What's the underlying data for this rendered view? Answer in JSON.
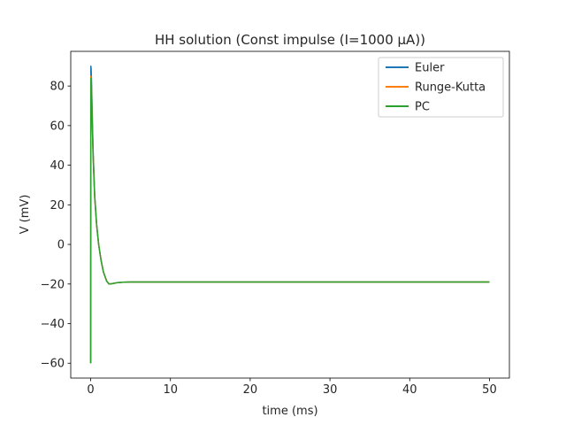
{
  "chart_data": {
    "type": "line",
    "title": "HH solution (Const impulse (I=1000 µA))",
    "xlabel": "time (ms)",
    "ylabel": "V (mV)",
    "xlim": [
      -2.5,
      52.5
    ],
    "ylim": [
      -67.5,
      97.5
    ],
    "xticks": [
      0,
      10,
      20,
      30,
      40,
      50
    ],
    "yticks": [
      -60,
      -40,
      -20,
      0,
      20,
      40,
      60,
      80
    ],
    "xtick_labels": [
      "0",
      "10",
      "20",
      "30",
      "40",
      "50"
    ],
    "ytick_labels": [
      "−60",
      "−40",
      "−20",
      "0",
      "20",
      "40",
      "60",
      "80"
    ],
    "grid": false,
    "legend_position": "top-right",
    "series": [
      {
        "name": "Euler",
        "color": "#1f77b4",
        "x": [
          0,
          0.02,
          0.05,
          0.08,
          0.12,
          0.18,
          0.3,
          0.5,
          0.75,
          1.0,
          1.3,
          1.6,
          2.0,
          2.3,
          2.7,
          3.2,
          4.0,
          5.0,
          7.0,
          10.0,
          20.0,
          30.0,
          40.0,
          50.0
        ],
        "y": [
          -60.0,
          90.0,
          89.0,
          86.0,
          80.0,
          68.0,
          48.0,
          25.0,
          10.0,
          0.0,
          -8.0,
          -14.0,
          -18.5,
          -20.0,
          -19.8,
          -19.4,
          -19.1,
          -19.0,
          -19.0,
          -19.0,
          -19.0,
          -19.0,
          -19.0,
          -19.0
        ]
      },
      {
        "name": "Runge-Kutta",
        "color": "#ff7f0e",
        "x": [
          0,
          0.02,
          0.05,
          0.08,
          0.12,
          0.18,
          0.3,
          0.5,
          0.75,
          1.0,
          1.3,
          1.6,
          2.0,
          2.3,
          2.7,
          3.2,
          4.0,
          5.0,
          7.0,
          10.0,
          20.0,
          30.0,
          40.0,
          50.0
        ],
        "y": [
          -60.0,
          85.0,
          84.0,
          81.0,
          76.0,
          65.0,
          46.0,
          24.0,
          9.5,
          0.0,
          -8.0,
          -14.0,
          -18.5,
          -20.0,
          -19.8,
          -19.4,
          -19.1,
          -19.0,
          -19.0,
          -19.0,
          -19.0,
          -19.0,
          -19.0,
          -19.0
        ]
      },
      {
        "name": "PC",
        "color": "#2ca02c",
        "x": [
          0,
          0.02,
          0.05,
          0.08,
          0.12,
          0.18,
          0.3,
          0.5,
          0.75,
          1.0,
          1.3,
          1.6,
          2.0,
          2.3,
          2.7,
          3.2,
          4.0,
          5.0,
          7.0,
          10.0,
          20.0,
          30.0,
          40.0,
          50.0
        ],
        "y": [
          -60.0,
          84.0,
          83.0,
          80.0,
          75.0,
          64.0,
          45.0,
          24.0,
          9.5,
          0.0,
          -8.0,
          -14.0,
          -18.5,
          -20.0,
          -19.8,
          -19.4,
          -19.1,
          -19.0,
          -19.0,
          -19.0,
          -19.0,
          -19.0,
          -19.0,
          -19.0
        ]
      }
    ]
  }
}
